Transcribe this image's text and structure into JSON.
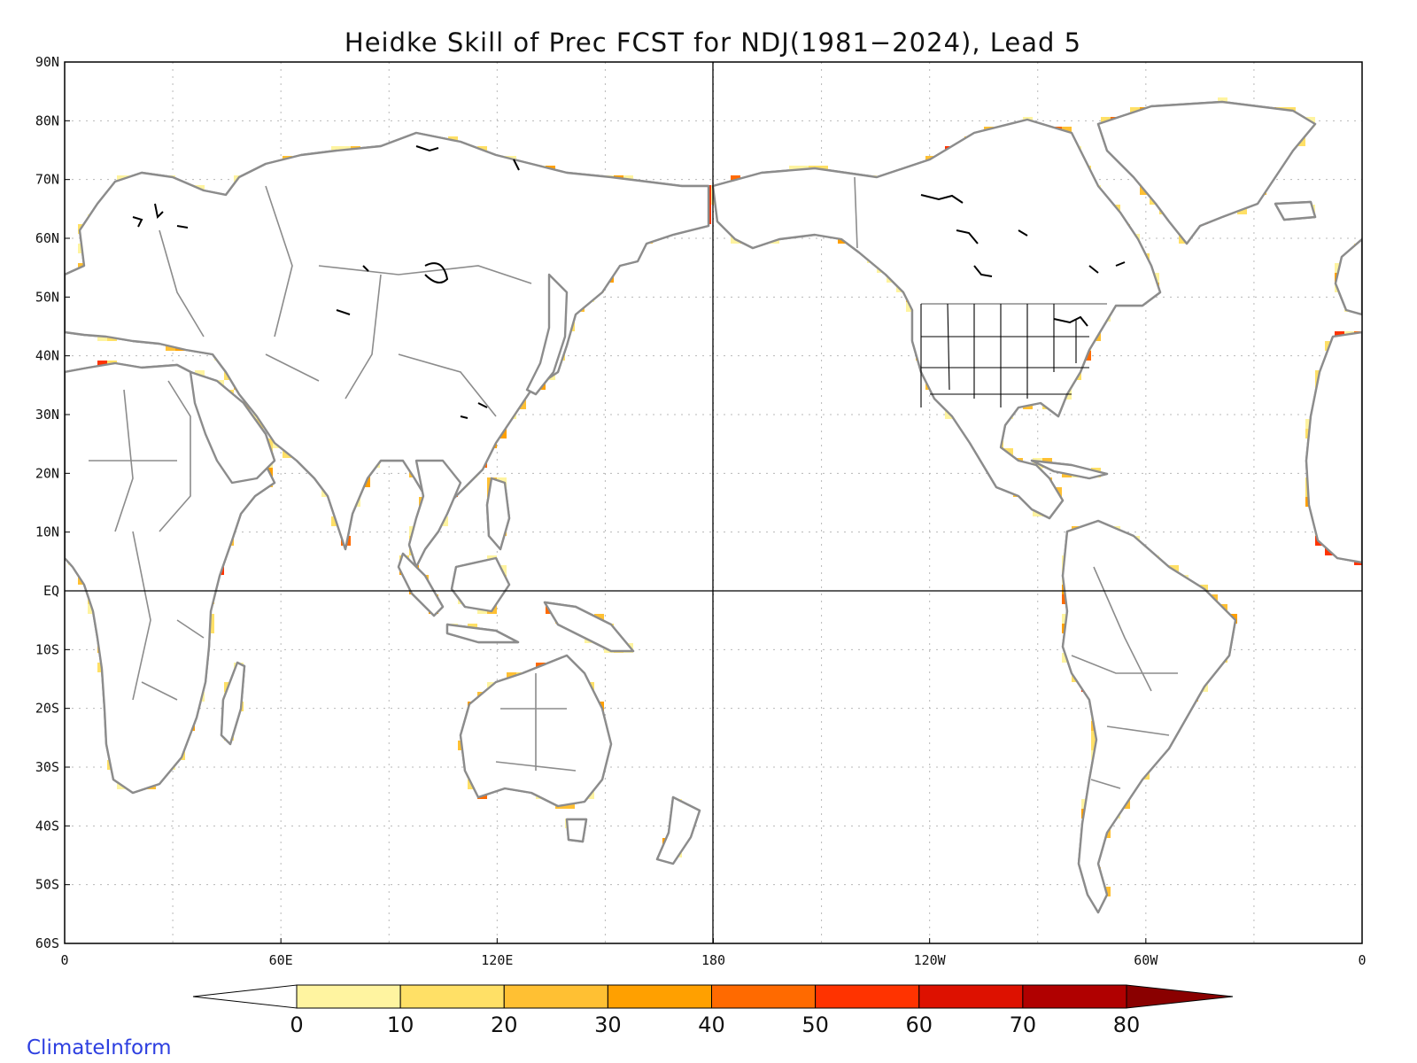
{
  "title": "Heidke Skill of Prec FCST for NDJ(1981−2024), Lead 5",
  "brand": "ClimateInform",
  "lat_labels": [
    "90N",
    "80N",
    "70N",
    "60N",
    "50N",
    "40N",
    "30N",
    "20N",
    "10N",
    "EQ",
    "10S",
    "20S",
    "30S",
    "40S",
    "50S",
    "60S"
  ],
  "lon_labels": [
    "0",
    "60E",
    "120E",
    "180",
    "120W",
    "60W",
    "0"
  ],
  "colorbar": {
    "labels": [
      "0",
      "10",
      "20",
      "30",
      "40",
      "50",
      "60",
      "70",
      "80"
    ],
    "colors": [
      "#ffffff",
      "#fff4a0",
      "#ffe066",
      "#ffc033",
      "#ffa000",
      "#ff6a00",
      "#ff3300",
      "#dd1100",
      "#b00000",
      "#8a0000"
    ]
  },
  "colors": {
    "coastline": "#8c8c8c",
    "lakes": "#000000",
    "frame": "#000000",
    "brand": "#2d3fe0"
  }
}
